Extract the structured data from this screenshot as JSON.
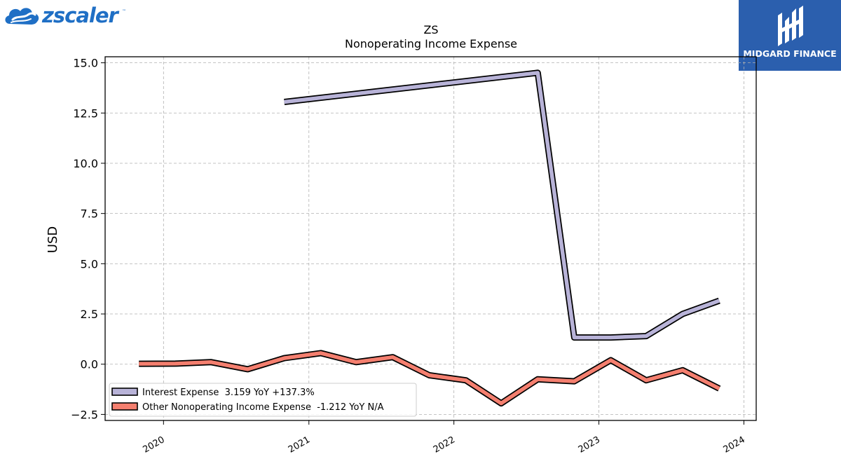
{
  "logos": {
    "left_text": "zscaler",
    "left_tm": "™",
    "right_text": "MIDGARD FINANCE"
  },
  "chart_data": {
    "type": "line",
    "title": "ZS",
    "subtitle": "Nonoperating Income Expense",
    "xlabel": "",
    "ylabel": "USD",
    "ylim": [
      -2.8,
      15.3
    ],
    "xlim": [
      "2019-08-07",
      "2024-02-01"
    ],
    "yticks": [
      15.0,
      12.5,
      10.0,
      7.5,
      5.0,
      2.5,
      0.0,
      -2.5
    ],
    "ytick_labels": [
      "15.0",
      "12.5",
      "10.0",
      "7.5",
      "5.0",
      "2.5",
      "0.0",
      "−2.5"
    ],
    "xticks": [
      "2020-01-01",
      "2021-01-01",
      "2022-01-01",
      "2023-01-01",
      "2024-01-01"
    ],
    "xtick_labels": [
      "2020",
      "2021",
      "2022",
      "2023",
      "2024"
    ],
    "grid": true,
    "legend_position": "lower-left",
    "series": [
      {
        "name": "Interest Expense  3.159 YoY +137.3%",
        "color": "#b8b3d8",
        "points": [
          [
            "2020-10-31",
            13.05
          ],
          [
            "2022-07-31",
            14.5
          ],
          [
            "2022-10-31",
            1.33
          ],
          [
            "2023-01-31",
            1.33
          ],
          [
            "2023-04-30",
            1.4
          ],
          [
            "2023-07-31",
            2.5
          ],
          [
            "2023-10-31",
            3.159
          ]
        ]
      },
      {
        "name": "Other Nonoperating Income Expense  -1.212 YoY N/A",
        "color": "#f47f6f",
        "points": [
          [
            "2019-10-31",
            0.02
          ],
          [
            "2020-01-31",
            0.03
          ],
          [
            "2020-04-30",
            0.1
          ],
          [
            "2020-07-31",
            -0.25
          ],
          [
            "2020-10-31",
            0.3
          ],
          [
            "2021-01-31",
            0.55
          ],
          [
            "2021-04-30",
            0.1
          ],
          [
            "2021-07-31",
            0.35
          ],
          [
            "2021-10-31",
            -0.55
          ],
          [
            "2022-01-31",
            -0.8
          ],
          [
            "2022-04-30",
            -1.95
          ],
          [
            "2022-07-31",
            -0.75
          ],
          [
            "2022-10-31",
            -0.85
          ],
          [
            "2023-01-31",
            0.2
          ],
          [
            "2023-04-30",
            -0.8
          ],
          [
            "2023-07-31",
            -0.3
          ],
          [
            "2023-10-31",
            -1.212
          ]
        ]
      }
    ]
  }
}
